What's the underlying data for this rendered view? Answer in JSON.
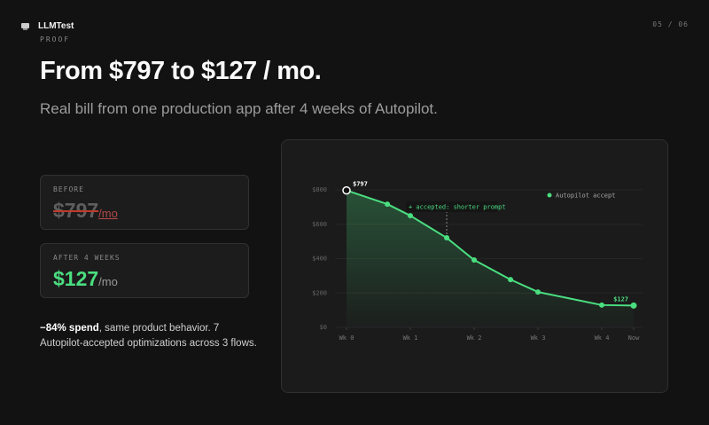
{
  "header": {
    "brand": "LLMTest",
    "page": "05 / 06",
    "eyebrow": "PROOF",
    "title": "From $797 to $127 / mo.",
    "subtitle": "Real bill from one production app after 4 weeks of Autopilot."
  },
  "cards": [
    {
      "label": "BEFORE",
      "value": "$797",
      "unit": "/mo"
    },
    {
      "label": "AFTER 4 WEEKS",
      "value": "$127",
      "unit": "/mo"
    }
  ],
  "summary": {
    "bold": "−84% spend",
    "text": ", same product behavior. 7 Autopilot-accepted optimizations across 3 flows."
  },
  "chart_data": {
    "type": "line",
    "x": [
      0,
      0.64,
      1,
      1.57,
      2,
      2.57,
      3,
      4,
      4.5
    ],
    "series": [
      {
        "name": "Autopilot accept",
        "color": "#4ade80",
        "values": [
          797,
          717,
          650,
          521,
          392,
          278,
          206,
          130,
          127
        ],
        "value_labels": [
          "$797",
          null,
          null,
          null,
          null,
          null,
          null,
          null,
          "$127"
        ]
      }
    ],
    "annotation": "+ accepted: shorter prompt",
    "xlim": [
      0,
      4.5
    ],
    "xticks": [
      {
        "value": 0,
        "label": "Wk 0"
      },
      {
        "value": 1,
        "label": "Wk 1"
      },
      {
        "value": 2,
        "label": "Wk 2"
      },
      {
        "value": 3,
        "label": "Wk 3"
      },
      {
        "value": 4,
        "label": "Wk 4"
      },
      {
        "value": 4.5,
        "label": "Now"
      }
    ],
    "ylim": [
      0,
      800
    ],
    "yticks": [
      {
        "value": 0,
        "label": "$0"
      },
      {
        "value": 200,
        "label": "$200"
      },
      {
        "value": 400,
        "label": "$400"
      },
      {
        "value": 600,
        "label": "$600"
      },
      {
        "value": 800,
        "label": "$800"
      }
    ],
    "grid": true,
    "legend": "top-right"
  }
}
